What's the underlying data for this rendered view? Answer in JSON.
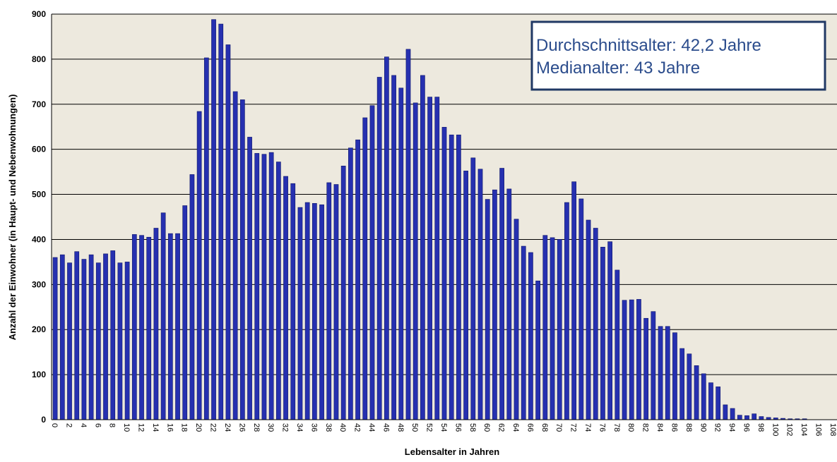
{
  "chart_data": {
    "type": "bar",
    "x_label": "Lebensalter in Jahren",
    "y_label": "Anzahl der Einwohner (in Haupt- und Nebenwohnungen)",
    "annotations": [
      "Durchschnittsalter: 42,2 Jahre",
      "Medianalter: 43 Jahre"
    ],
    "categories": [
      "0",
      null,
      "2",
      null,
      "4",
      null,
      "6",
      null,
      "8",
      null,
      "10",
      null,
      "12",
      null,
      "14",
      null,
      "16",
      null,
      "18",
      null,
      "20",
      null,
      "22",
      null,
      "24",
      null,
      "26",
      null,
      "28",
      null,
      "30",
      null,
      "32",
      null,
      "34",
      null,
      "36",
      null,
      "38",
      null,
      "40",
      null,
      "42",
      null,
      "44",
      null,
      "46",
      null,
      "48",
      null,
      "50",
      null,
      "52",
      null,
      "54",
      null,
      "56",
      null,
      "58",
      null,
      "60",
      null,
      "62",
      null,
      "64",
      null,
      "66",
      null,
      "68",
      null,
      "70",
      null,
      "72",
      null,
      "74",
      null,
      "76",
      null,
      "78",
      null,
      "80",
      null,
      "82",
      null,
      "84",
      null,
      "86",
      null,
      "88",
      null,
      "90",
      null,
      "92",
      null,
      "94",
      null,
      "96",
      null,
      "98",
      null,
      "100",
      null,
      "102",
      null,
      "104",
      null,
      "106",
      null,
      "108"
    ],
    "values": [
      360,
      366,
      348,
      373,
      356,
      366,
      348,
      368,
      375,
      348,
      350,
      411,
      409,
      405,
      425,
      459,
      413,
      413,
      475,
      544,
      684,
      803,
      888,
      878,
      832,
      728,
      710,
      627,
      591,
      589,
      593,
      572,
      540,
      524,
      471,
      482,
      480,
      477,
      526,
      522,
      563,
      603,
      621,
      670,
      697,
      760,
      805,
      764,
      736,
      822,
      703,
      764,
      716,
      716,
      649,
      632,
      632,
      552,
      581,
      556,
      489,
      510,
      558,
      512,
      445,
      385,
      371,
      308,
      409,
      404,
      400,
      482,
      528,
      490,
      443,
      425,
      383,
      395,
      332,
      265,
      266,
      267,
      225,
      240,
      207,
      207,
      193,
      158,
      146,
      120,
      102,
      82,
      73,
      33,
      25,
      10,
      9,
      13,
      7,
      5,
      4,
      3,
      2,
      2,
      2,
      0,
      0,
      0,
      0
    ],
    "color": "#2630b0",
    "ylim": [
      0,
      900
    ],
    "yticks": [
      0,
      100,
      200,
      300,
      400,
      500,
      600,
      700,
      800,
      900
    ],
    "grid": true
  }
}
